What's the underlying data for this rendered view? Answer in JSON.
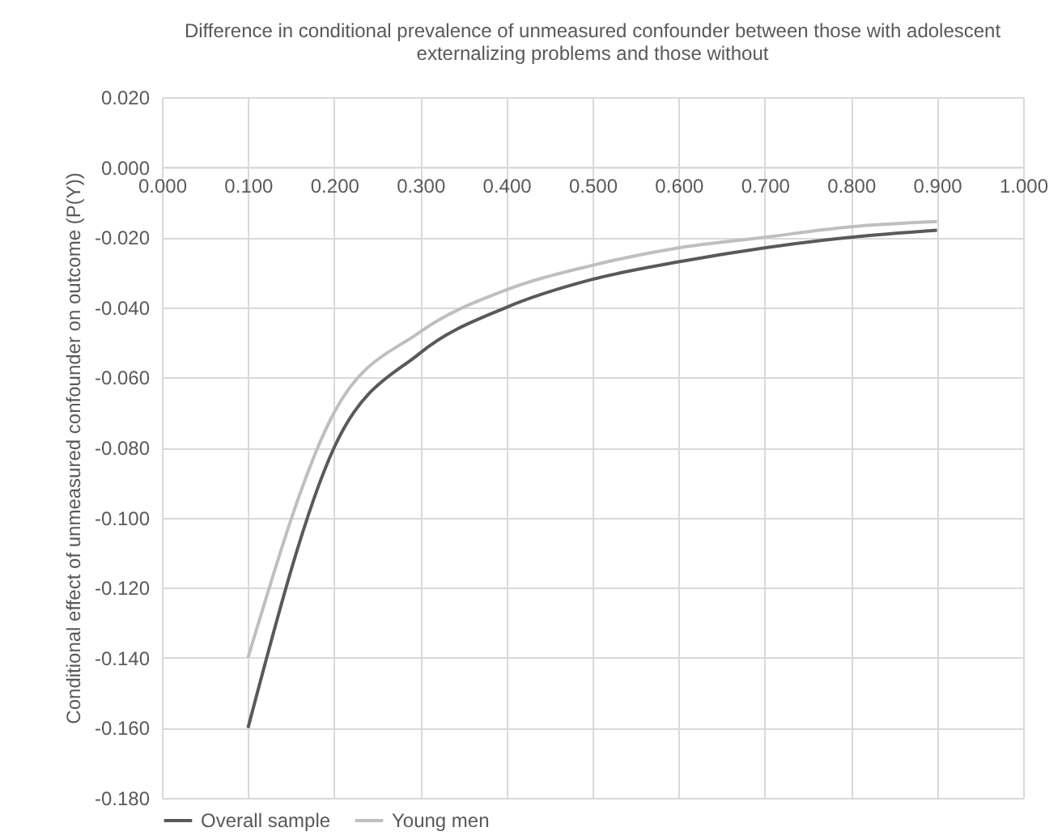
{
  "chart_data": {
    "type": "line",
    "title": [
      "Difference in conditional prevalence of unmeasured confounder between those with adolescent",
      "externalizing problems and those without"
    ],
    "ylabel": "Conditional effect of unmeasured confounder on outcome (P(Y))",
    "x": [
      0.1,
      0.2,
      0.3,
      0.4,
      0.5,
      0.6,
      0.7,
      0.8,
      0.9
    ],
    "series": [
      {
        "name": "Overall sample",
        "color": "#595959",
        "values": [
          -0.16,
          -0.08,
          -0.053,
          -0.04,
          -0.032,
          -0.027,
          -0.023,
          -0.02,
          -0.018
        ]
      },
      {
        "name": "Young men",
        "color": "#bfbfbf",
        "values": [
          -0.14,
          -0.07,
          -0.047,
          -0.035,
          -0.028,
          -0.023,
          -0.02,
          -0.017,
          -0.0155
        ]
      }
    ],
    "xlim": [
      0,
      1
    ],
    "ylim": [
      -0.18,
      0.02
    ],
    "xticks": [
      {
        "value": 0,
        "label": "0.000"
      },
      {
        "value": 0.1,
        "label": "0.100"
      },
      {
        "value": 0.2,
        "label": "0.200"
      },
      {
        "value": 0.3,
        "label": "0.300"
      },
      {
        "value": 0.4,
        "label": "0.400"
      },
      {
        "value": 0.5,
        "label": "0.500"
      },
      {
        "value": 0.6,
        "label": "0.600"
      },
      {
        "value": 0.7,
        "label": "0.700"
      },
      {
        "value": 0.8,
        "label": "0.800"
      },
      {
        "value": 0.9,
        "label": "0.900"
      },
      {
        "value": 1,
        "label": "1.000"
      }
    ],
    "yticks": [
      {
        "value": 0.02,
        "label": "0.020"
      },
      {
        "value": 0,
        "label": "0.000"
      },
      {
        "value": -0.02,
        "label": "-0.020"
      },
      {
        "value": -0.04,
        "label": "-0.040"
      },
      {
        "value": -0.06,
        "label": "-0.060"
      },
      {
        "value": -0.08,
        "label": "-0.080"
      },
      {
        "value": -0.1,
        "label": "-0.100"
      },
      {
        "value": -0.12,
        "label": "-0.120"
      },
      {
        "value": -0.14,
        "label": "-0.140"
      },
      {
        "value": -0.16,
        "label": "-0.160"
      },
      {
        "value": -0.18,
        "label": "-0.180"
      }
    ],
    "grid": true,
    "legend": "bottom",
    "marker": "none",
    "line_style": "solid"
  }
}
